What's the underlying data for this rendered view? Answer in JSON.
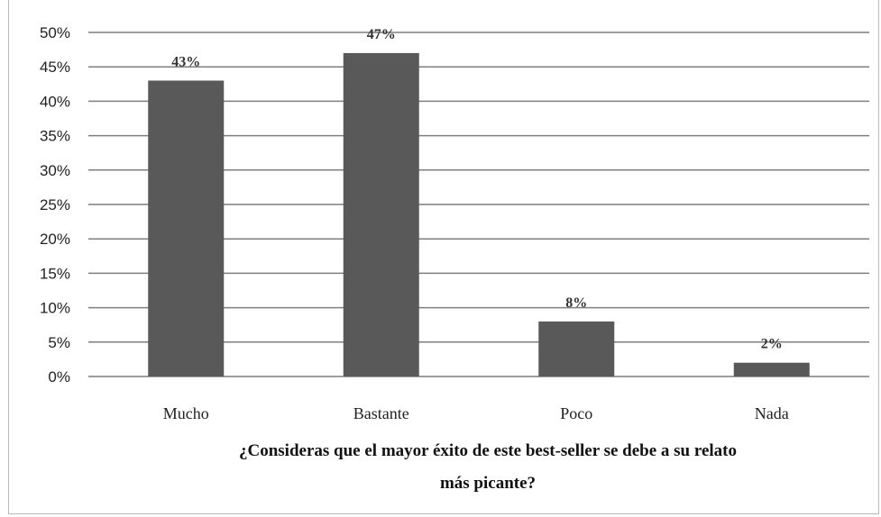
{
  "chart_data": {
    "type": "bar",
    "categories": [
      "Mucho",
      "Bastante",
      "Poco",
      "Nada"
    ],
    "values": [
      43,
      47,
      8,
      2
    ],
    "data_labels": [
      "43%",
      "47%",
      "8%",
      "2%"
    ],
    "xlabel": "¿Consideras que el mayor éxito de este best-seller se debe a su relato más picante?",
    "xlabel_lines": [
      "¿Consideras que el mayor éxito de este best-seller se debe a su relato",
      "más picante?"
    ],
    "ylabel": "",
    "ylim": [
      0,
      50
    ],
    "y_ticks": [
      0,
      5,
      10,
      15,
      20,
      25,
      30,
      35,
      40,
      45,
      50
    ],
    "y_tick_labels": [
      "0%",
      "5%",
      "10%",
      "15%",
      "20%",
      "25%",
      "30%",
      "35%",
      "40%",
      "45%",
      "50%"
    ],
    "grid": true,
    "legend": "none",
    "bar_color": "#595959",
    "grid_color": "#7f7f7f"
  }
}
